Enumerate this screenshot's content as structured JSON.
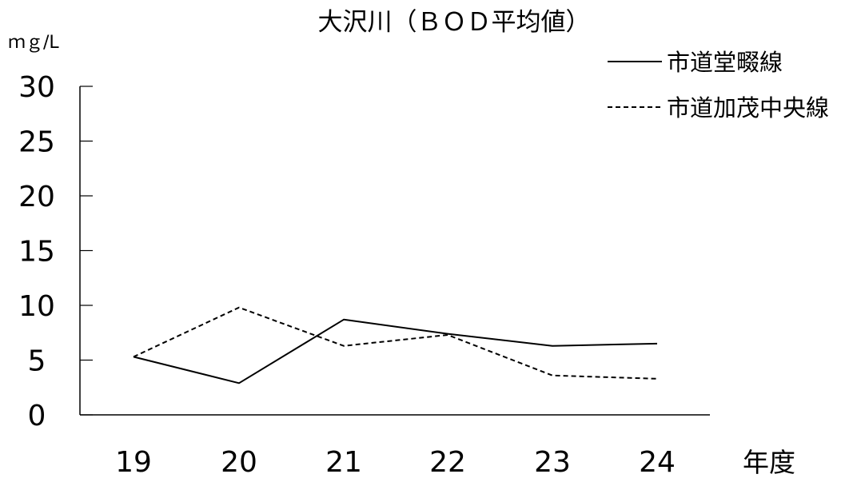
{
  "chart_data": {
    "type": "line",
    "title": "大沢川（ＢＯＤ平均値）",
    "ylabel": "ｍｇ/L",
    "xlabel": "年度",
    "categories": [
      "19",
      "20",
      "21",
      "22",
      "23",
      "24"
    ],
    "ylim": [
      0,
      30
    ],
    "yticks": [
      0,
      5,
      10,
      15,
      20,
      25,
      30
    ],
    "grid": false,
    "legend": "top-right",
    "series": [
      {
        "name": "市道堂畷線",
        "style": "solid",
        "values": [
          5.3,
          2.9,
          8.7,
          7.4,
          6.3,
          6.5
        ]
      },
      {
        "name": "市道加茂中央線",
        "style": "dashed",
        "values": [
          5.3,
          9.8,
          6.3,
          7.3,
          3.6,
          3.3
        ]
      }
    ]
  }
}
